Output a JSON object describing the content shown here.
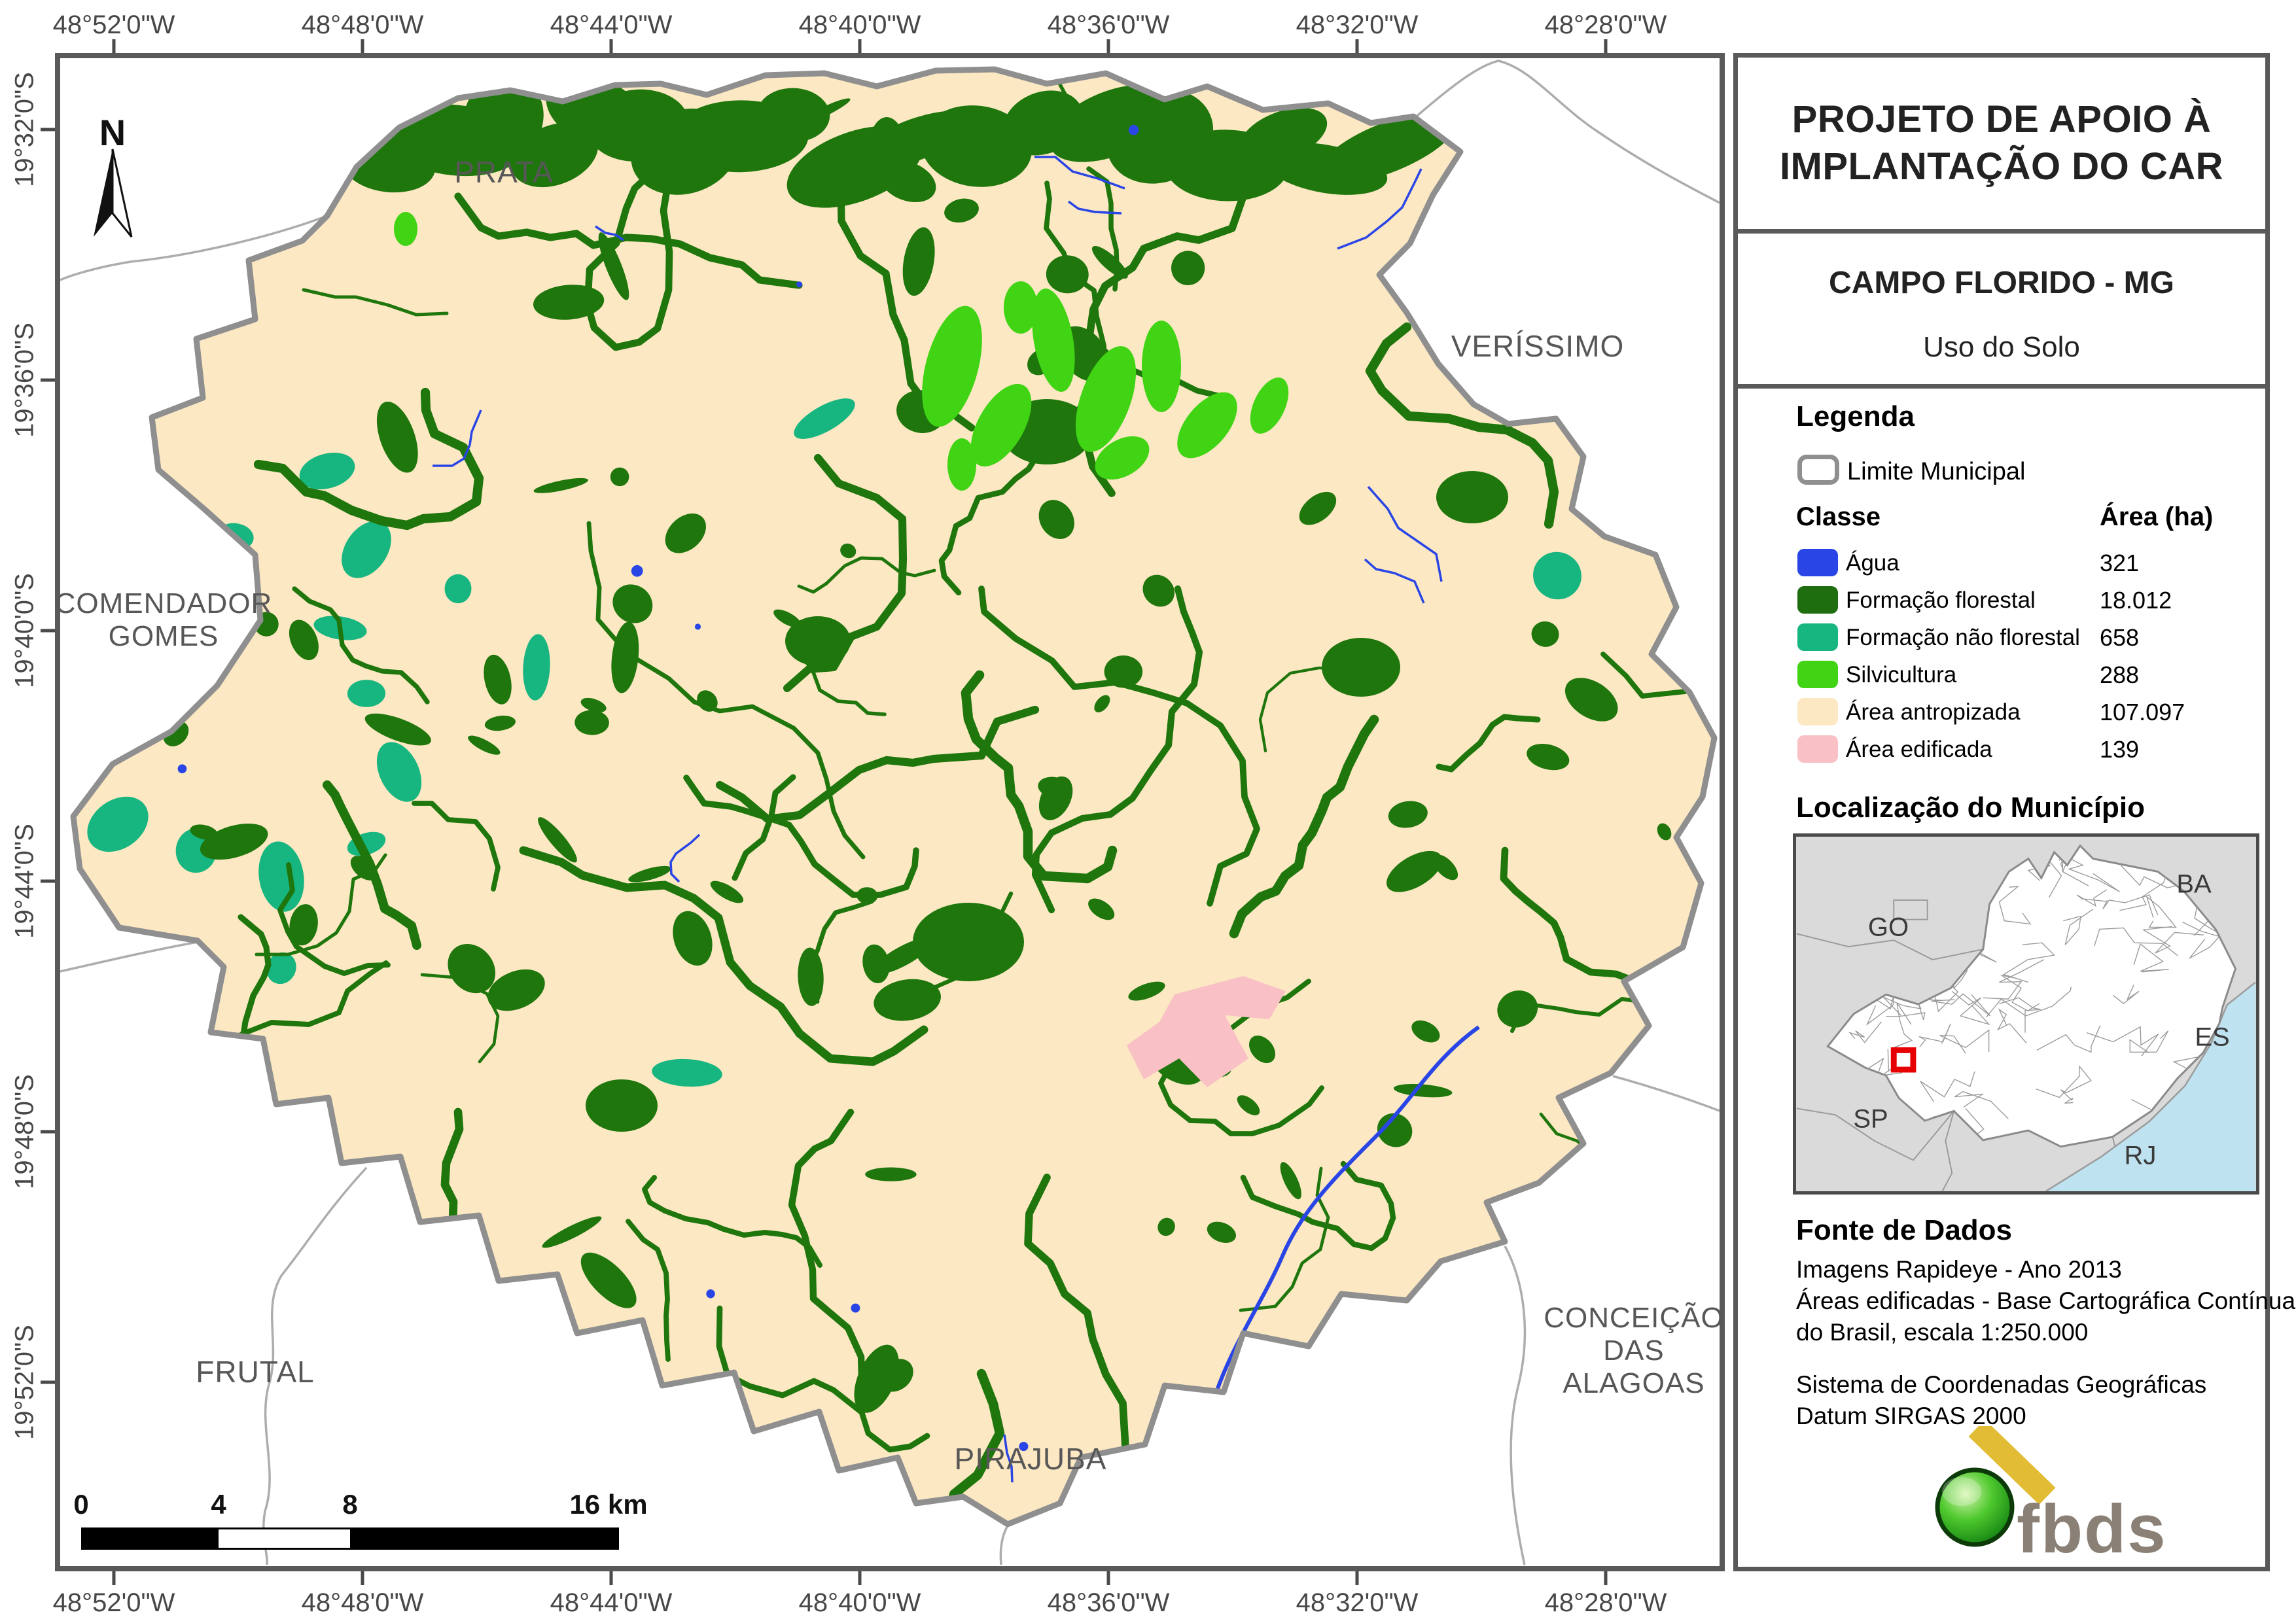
{
  "panel": {
    "title_line1": "PROJETO DE APOIO À",
    "title_line2": "IMPLANTAÇÃO DO CAR",
    "municipality": "CAMPO FLORIDO - MG",
    "subtitle": "Uso do Solo",
    "legend": {
      "heading": "Legenda",
      "limite_label": "Limite Municipal",
      "col_class": "Classe",
      "col_area": "Área (ha)",
      "classes": [
        {
          "label": "Água",
          "area": "321",
          "color": "#2945E6"
        },
        {
          "label": "Formação florestal",
          "area": "18.012",
          "color": "#1E6E0F"
        },
        {
          "label": "Formação não florestal",
          "area": "658",
          "color": "#17B57F"
        },
        {
          "label": "Silvicultura",
          "area": "288",
          "color": "#40D414"
        },
        {
          "label": "Área antropizada",
          "area": "107.097",
          "color": "#FCE8C3"
        },
        {
          "label": "Área edificada",
          "area": "139",
          "color": "#F9C0C6"
        }
      ]
    },
    "location": {
      "heading": "Localização do Município",
      "states": {
        "go": "GO",
        "ba": "BA",
        "es": "ES",
        "sp": "SP",
        "rj": "RJ"
      },
      "marker_color": "#E60000"
    },
    "source": {
      "heading": "Fonte de Dados",
      "lines": [
        "Imagens Rapideye - Ano 2013",
        "Áreas edificadas - Base Cartográfica Contínua",
        "do Brasil, escala 1:250.000"
      ],
      "crs_lines": [
        "Sistema de Coordenadas Geográficas",
        "Datum SIRGAS 2000"
      ]
    },
    "logo_text": "fbds"
  },
  "map": {
    "north_label": "N",
    "boundary_color": "#8F8F8F",
    "frame_color": "#595959",
    "neighbors": {
      "prata": "PRATA",
      "verissimo": "VERÍSSIMO",
      "comendador_1": "COMENDADOR",
      "comendador_2": "GOMES",
      "frutal": "FRUTAL",
      "pirajuba": "PIRAJUBA",
      "conceicao_1": "CONCEIÇÃO",
      "conceicao_2": "DAS",
      "conceicao_3": "ALAGOAS"
    },
    "lon_ticks": [
      "48°52'0\"W",
      "48°48'0\"W",
      "48°44'0\"W",
      "48°40'0\"W",
      "48°36'0\"W",
      "48°32'0\"W",
      "48°28'0\"W"
    ],
    "lat_ticks": [
      "19°32'0\"S",
      "19°36'0\"S",
      "19°40'0\"S",
      "19°44'0\"S",
      "19°48'0\"S",
      "19°52'0\"S"
    ],
    "scalebar": [
      "0",
      "4",
      "8",
      "16 km"
    ]
  }
}
